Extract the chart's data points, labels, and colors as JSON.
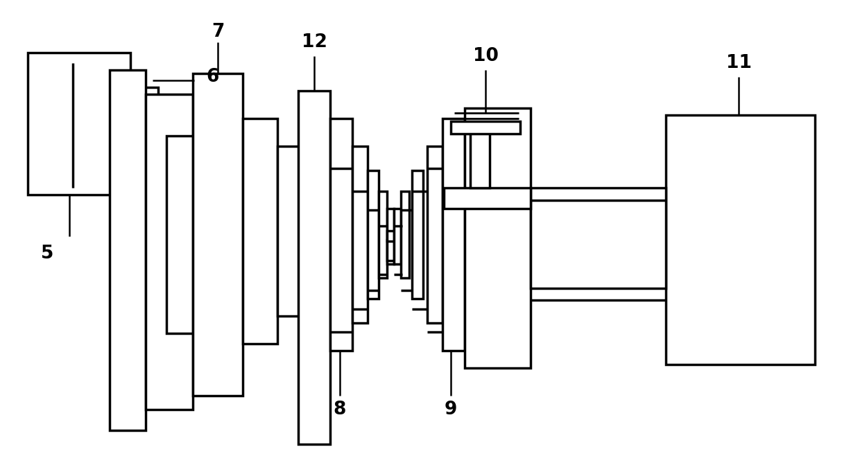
{
  "bg_color": "#ffffff",
  "lw": 2.5,
  "lw_leader": 1.8,
  "label_fontsize": 19,
  "figsize": [
    12.4,
    6.71
  ],
  "dpi": 100
}
